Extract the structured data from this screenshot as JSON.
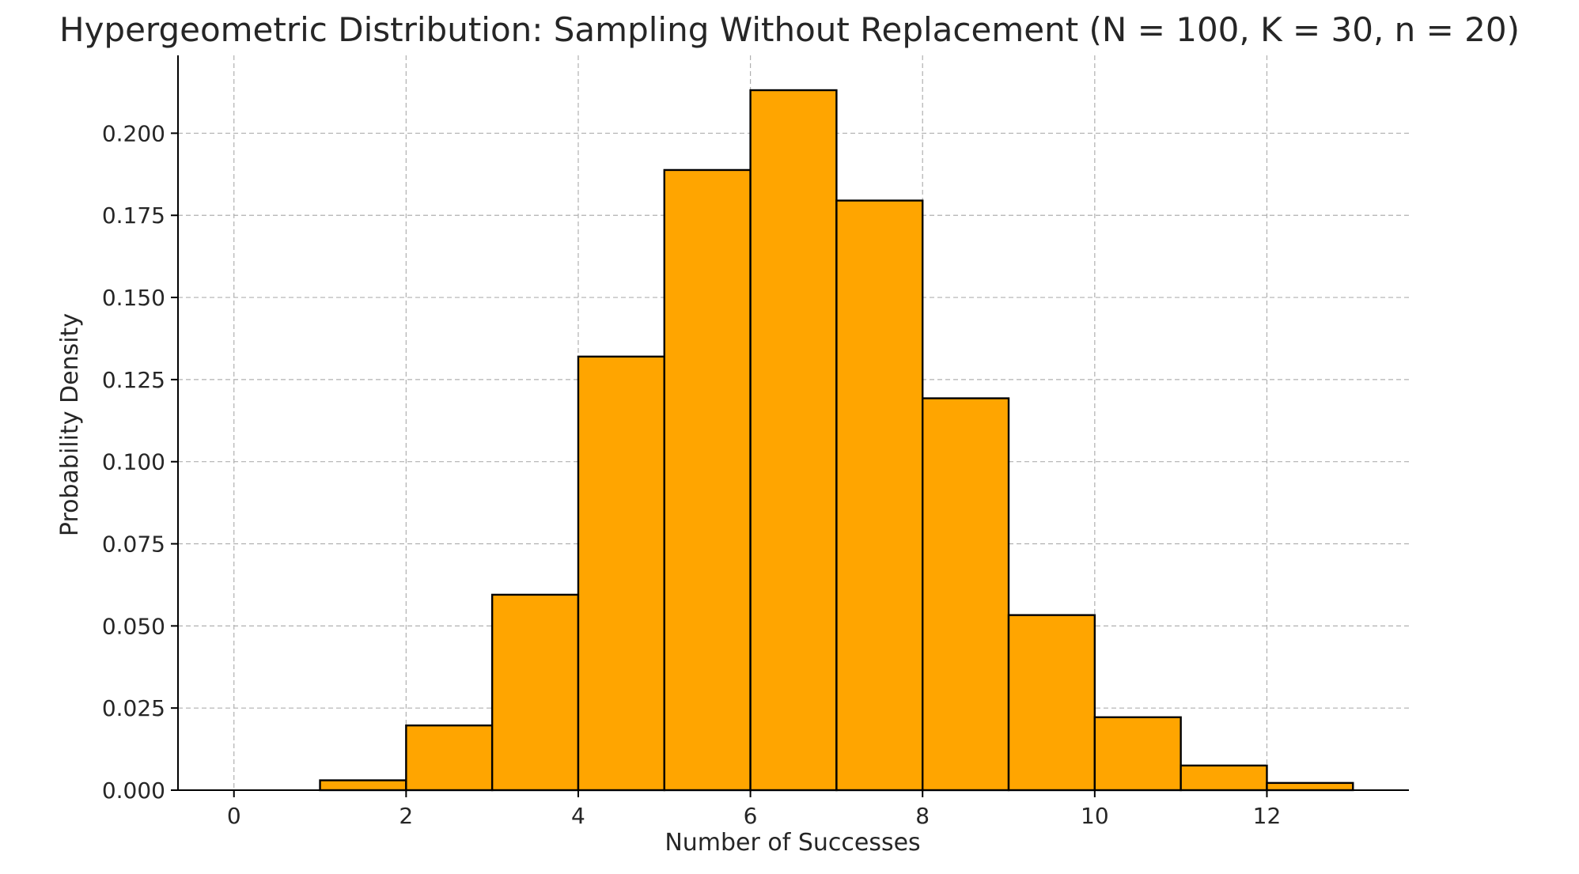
{
  "chart_data": {
    "type": "bar",
    "title": "Hypergeometric Distribution: Sampling Without Replacement (N = 100, K = 30, n = 20)",
    "xlabel": "Number of Successes",
    "ylabel": "Probability Density",
    "bins": [
      {
        "x0": 0,
        "x1": 1,
        "value": 0.0
      },
      {
        "x0": 1,
        "x1": 2,
        "value": 0.003
      },
      {
        "x0": 2,
        "x1": 3,
        "value": 0.0197
      },
      {
        "x0": 3,
        "x1": 4,
        "value": 0.0595
      },
      {
        "x0": 4,
        "x1": 5,
        "value": 0.132
      },
      {
        "x0": 5,
        "x1": 6,
        "value": 0.1888
      },
      {
        "x0": 6,
        "x1": 7,
        "value": 0.2131
      },
      {
        "x0": 7,
        "x1": 8,
        "value": 0.1795
      },
      {
        "x0": 8,
        "x1": 9,
        "value": 0.1193
      },
      {
        "x0": 9,
        "x1": 10,
        "value": 0.0533
      },
      {
        "x0": 10,
        "x1": 11,
        "value": 0.0222
      },
      {
        "x0": 11,
        "x1": 12,
        "value": 0.0075
      },
      {
        "x0": 12,
        "x1": 13,
        "value": 0.0022
      }
    ],
    "xlim": [
      -0.65,
      13.65
    ],
    "ylim": [
      0,
      0.2237
    ],
    "xticks": [
      0,
      2,
      4,
      6,
      8,
      10,
      12
    ],
    "xtick_labels": [
      "0",
      "2",
      "4",
      "6",
      "8",
      "10",
      "12"
    ],
    "yticks": [
      0.0,
      0.025,
      0.05,
      0.075,
      0.1,
      0.125,
      0.15,
      0.175,
      0.2
    ],
    "ytick_labels": [
      "0.000",
      "0.025",
      "0.050",
      "0.075",
      "0.100",
      "0.125",
      "0.150",
      "0.175",
      "0.200"
    ],
    "grid": true,
    "bar_color": "#ffa500",
    "edge_color": "#000000",
    "grid_color": "#b0b0b0"
  }
}
